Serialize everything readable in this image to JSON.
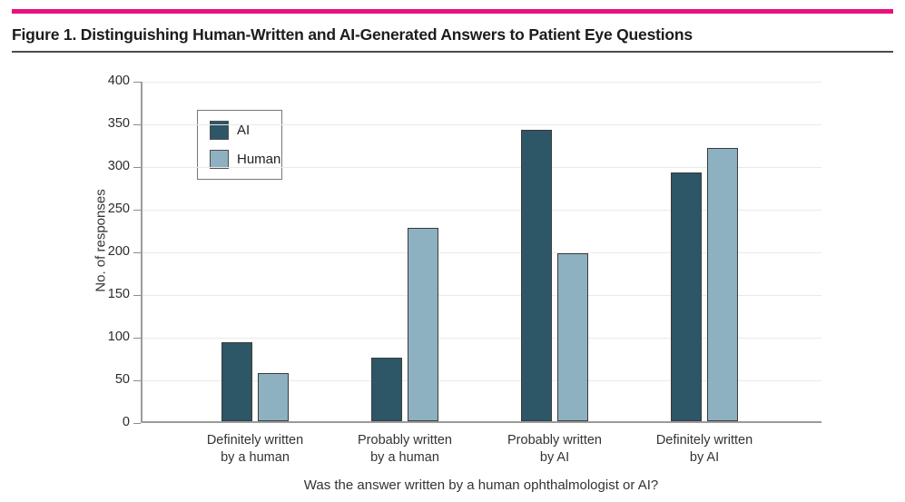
{
  "figure": {
    "title": "Figure 1. Distinguishing Human-Written and AI-Generated Answers to Patient Eye Questions",
    "accent_color": "#e9117e"
  },
  "chart_data": {
    "type": "bar",
    "title": "Figure 1. Distinguishing Human-Written and AI-Generated Answers to Patient Eye Questions",
    "categories": [
      "Definitely written\nby a human",
      "Probably written\nby a human",
      "Probably written\nby AI",
      "Definitely written\nby AI"
    ],
    "series": [
      {
        "name": "AI",
        "color": "#2d5666",
        "values": [
          93,
          75,
          341,
          291
        ]
      },
      {
        "name": "Human",
        "color": "#8eb1c1",
        "values": [
          56,
          227,
          197,
          320
        ]
      }
    ],
    "xlabel": "Was the answer written by a human ophthalmologist or AI?",
    "ylabel": "No. of responses",
    "ylim": [
      0,
      400
    ],
    "ytick_step": 50,
    "yticks": [
      0,
      50,
      100,
      150,
      200,
      250,
      300,
      350,
      400
    ],
    "grid": true,
    "legend_position": "upper-left",
    "bar_border_color": "#3b3b3b"
  }
}
